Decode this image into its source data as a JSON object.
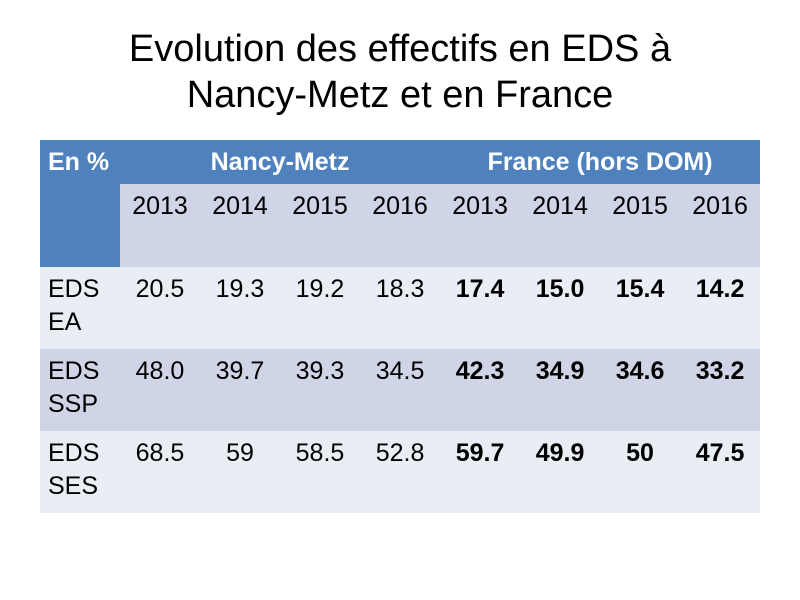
{
  "title": {
    "line1": "Evolution des effectifs en EDS à",
    "line2": "Nancy-Metz et en France"
  },
  "table": {
    "corner_label": "En %",
    "groups": [
      "Nancy-Metz",
      "France (hors DOM)"
    ],
    "years": [
      "2013",
      "2014",
      "2015",
      "2016",
      "2013",
      "2014",
      "2015",
      "2016"
    ],
    "rows": [
      {
        "label": "EDS EA",
        "nancy_metz": [
          "20.5",
          "19.3",
          "19.2",
          "18.3"
        ],
        "france": [
          "17.4",
          "15.0",
          "15.4",
          "14.2"
        ]
      },
      {
        "label": "EDS SSP",
        "nancy_metz": [
          "48.0",
          "39.7",
          "39.3",
          "34.5"
        ],
        "france": [
          "42.3",
          "34.9",
          "34.6",
          "33.2"
        ]
      },
      {
        "label": "EDS SES",
        "nancy_metz": [
          "68.5",
          "59",
          "58.5",
          "52.8"
        ],
        "france": [
          "59.7",
          "49.9",
          "50",
          "47.5"
        ]
      }
    ]
  },
  "colors": {
    "header_blue": "#4f81bd",
    "row_light": "#e9edf4",
    "row_dark": "#cfd5e6"
  }
}
